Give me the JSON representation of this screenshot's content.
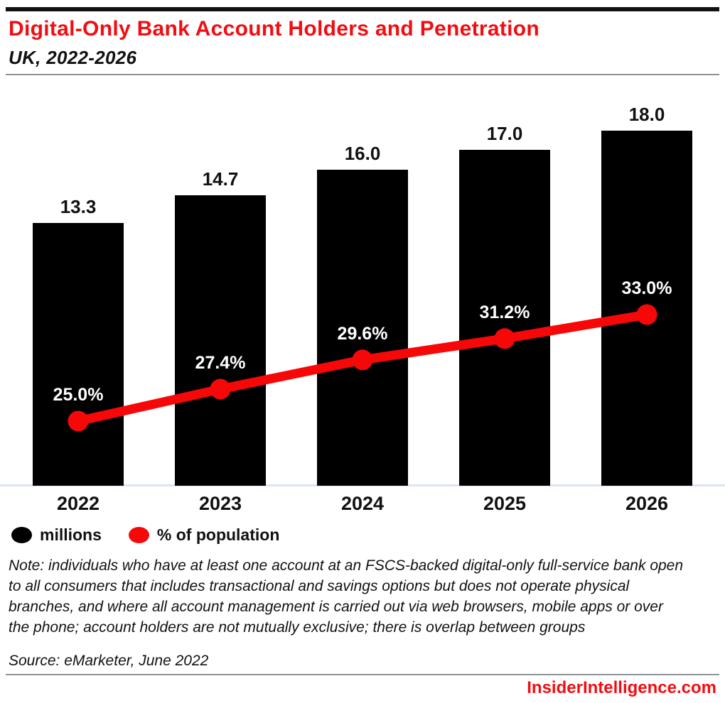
{
  "header": {
    "title": "Digital-Only Bank Account Holders and Penetration",
    "subtitle": "UK, 2022-2026"
  },
  "chart_data": {
    "type": "bar",
    "combo": "bar+line",
    "title": "Digital-Only Bank Account Holders and Penetration",
    "subtitle": "UK, 2022-2026",
    "categories": [
      "2022",
      "2023",
      "2024",
      "2025",
      "2026"
    ],
    "series": [
      {
        "name": "millions",
        "type": "bar",
        "values": [
          13.3,
          14.7,
          16.0,
          17.0,
          18.0
        ],
        "labels": [
          "13.3",
          "14.7",
          "16.0",
          "17.0",
          "18.0"
        ],
        "color": "#000000"
      },
      {
        "name": "% of population",
        "type": "line",
        "values": [
          25.0,
          27.4,
          29.6,
          31.2,
          33.0
        ],
        "labels": [
          "25.0%",
          "27.4%",
          "29.6%",
          "31.2%",
          "33.0%"
        ],
        "color": "#f70808"
      }
    ],
    "xlabel": "",
    "ylabel": "",
    "ylim_bar": [
      0,
      20
    ],
    "ylim_line_pct": [
      20,
      35
    ],
    "grid": false,
    "legend_position": "bottom-left"
  },
  "legend": [
    {
      "label": "millions",
      "color": "#000000"
    },
    {
      "label": "% of population",
      "color": "#f70808"
    }
  ],
  "footer": {
    "note": "Note: individuals who have at least one account at an FSCS-backed digital-only full-service bank open to all consumers that includes transactional and savings options but does not operate physical branches, and where all account management is carried out via web browsers, mobile apps or over the phone; account holders are not mutually exclusive; there is overlap between groups",
    "source": "Source: eMarketer, June 2022",
    "site": "InsiderIntelligence.com"
  },
  "colors": {
    "accent_red": "#f20d12",
    "line_red": "#f70808",
    "bar_black": "#000000",
    "axis_line": "#dde4f2",
    "divider": "#8f9398",
    "top_bar": "#111111"
  }
}
